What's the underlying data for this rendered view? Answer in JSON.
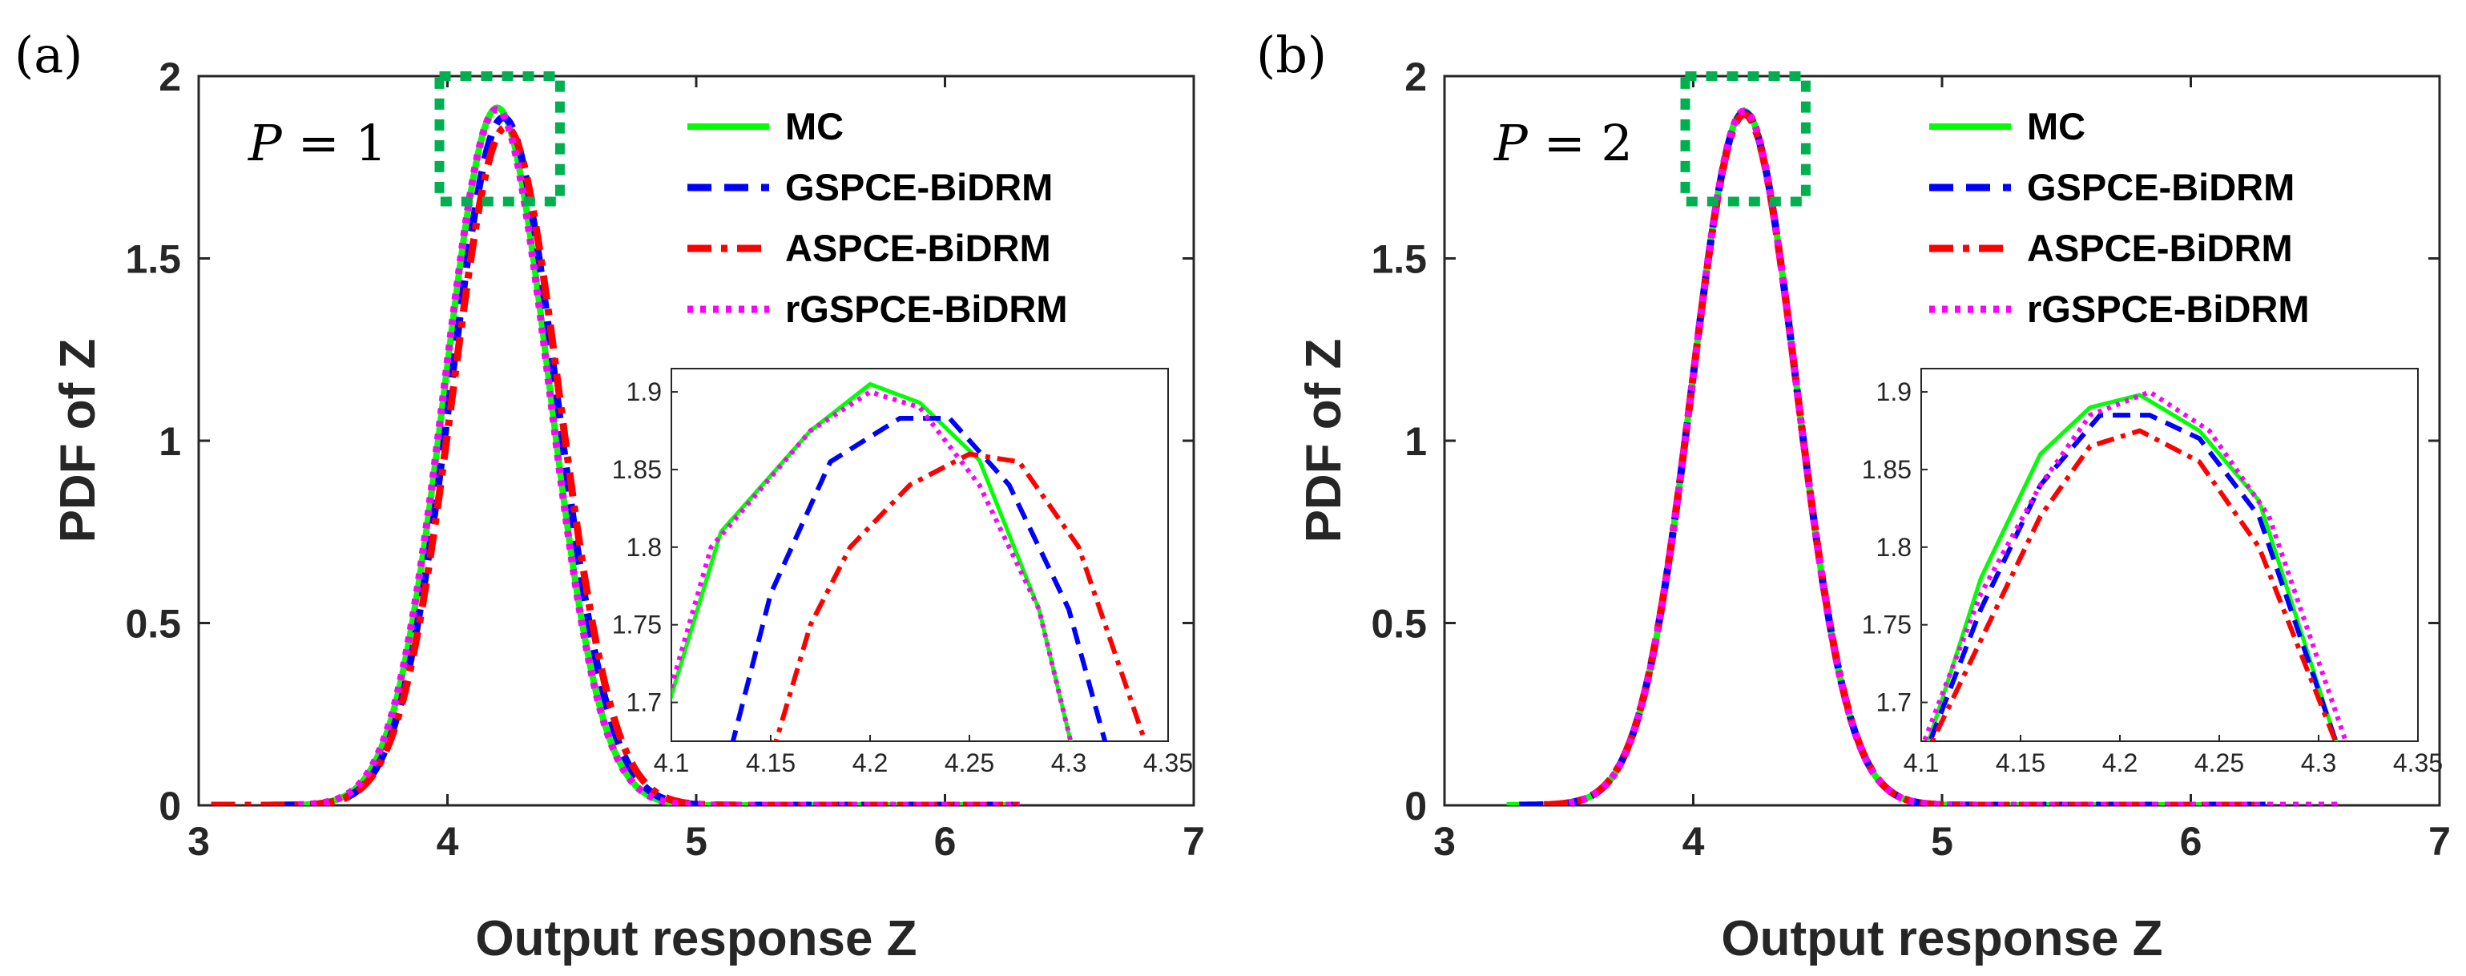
{
  "chart_data": [
    {
      "type": "line",
      "panel_label": "(a)",
      "annotation": {
        "symbol": "P",
        "equals": "= 1"
      },
      "xlabel": "Output response Z",
      "ylabel": "PDF of Z",
      "xlim": [
        3,
        7
      ],
      "ylim": [
        0,
        2
      ],
      "xticks": [
        "3",
        "4",
        "5",
        "6",
        "7"
      ],
      "yticks": [
        "0",
        "0.5",
        "1",
        "1.5",
        "2"
      ],
      "legend_position": "top-right",
      "zoom_box": {
        "x": [
          4.0,
          4.42
        ],
        "y": [
          1.7,
          2.0
        ]
      },
      "series": [
        {
          "name": "MC",
          "color": "#00ff00",
          "style": "solid",
          "mu": 4.2,
          "sigma": 0.2085,
          "x_range": [
            3.3,
            6.3
          ]
        },
        {
          "name": "GSPCE-BiDRM",
          "color": "#0000ff",
          "style": "dashed",
          "mu": 4.225,
          "sigma": 0.2115,
          "x_range": [
            3.3,
            6.3
          ]
        },
        {
          "name": "ASPCE-BiDRM",
          "color": "#ff0000",
          "style": "dashdot",
          "mu": 4.235,
          "sigma": 0.2145,
          "x_range": [
            3.05,
            6.3
          ]
        },
        {
          "name": "rGSPCE-BiDRM",
          "color": "#ff00ff",
          "style": "dotted",
          "mu": 4.198,
          "sigma": 0.209,
          "x_range": [
            3.4,
            6.3
          ]
        }
      ],
      "inset": {
        "xlim": [
          4.1,
          4.35
        ],
        "ylim": [
          1.675,
          1.915
        ],
        "xticks": [
          "4.1",
          "4.15",
          "4.2",
          "4.25",
          "4.3",
          "4.35"
        ],
        "yticks": [
          "1.7",
          "1.75",
          "1.8",
          "1.85",
          "1.9"
        ],
        "series": [
          {
            "name": "MC",
            "x": [
              4.08,
              4.125,
              4.17,
              4.2,
              4.225,
              4.255,
              4.285,
              4.315
            ],
            "y": [
              1.62,
              1.81,
              1.875,
              1.905,
              1.893,
              1.856,
              1.76,
              1.6
            ]
          },
          {
            "name": "GSPCE-BiDRM",
            "x": [
              4.12,
              4.15,
              4.18,
              4.215,
              4.24,
              4.27,
              4.3,
              4.33
            ],
            "y": [
              1.62,
              1.77,
              1.855,
              1.883,
              1.883,
              1.84,
              1.76,
              1.62
            ]
          },
          {
            "name": "ASPCE-BiDRM",
            "x": [
              4.14,
              4.17,
              4.19,
              4.22,
              4.25,
              4.275,
              4.305,
              4.345
            ],
            "y": [
              1.62,
              1.75,
              1.8,
              1.84,
              1.86,
              1.855,
              1.8,
              1.65
            ]
          },
          {
            "name": "rGSPCE-BiDRM",
            "x": [
              4.08,
              4.12,
              4.17,
              4.2,
              4.225,
              4.255,
              4.285,
              4.315
            ],
            "y": [
              1.62,
              1.8,
              1.875,
              1.9,
              1.89,
              1.84,
              1.76,
              1.6
            ]
          }
        ]
      }
    },
    {
      "type": "line",
      "panel_label": "(b)",
      "annotation": {
        "symbol": "P",
        "equals": "= 2"
      },
      "xlabel": "Output response Z",
      "ylabel": "PDF of Z",
      "xlim": [
        3,
        7
      ],
      "ylim": [
        0,
        2
      ],
      "xticks": [
        "3",
        "4",
        "5",
        "6",
        "7"
      ],
      "yticks": [
        "0",
        "0.5",
        "1",
        "1.5",
        "2"
      ],
      "legend_position": "top-right",
      "zoom_box": {
        "x": [
          4.0,
          4.42
        ],
        "y": [
          1.7,
          2.0
        ]
      },
      "series": [
        {
          "name": "MC",
          "color": "#00ff00",
          "style": "solid",
          "mu": 4.205,
          "sigma": 0.2095,
          "x_range": [
            3.25,
            6.3
          ]
        },
        {
          "name": "GSPCE-BiDRM",
          "color": "#0000ff",
          "style": "dashed",
          "mu": 4.205,
          "sigma": 0.21,
          "x_range": [
            3.3,
            6.3
          ]
        },
        {
          "name": "ASPCE-BiDRM",
          "color": "#ff0000",
          "style": "dashdot",
          "mu": 4.205,
          "sigma": 0.2105,
          "x_range": [
            3.4,
            6.3
          ]
        },
        {
          "name": "rGSPCE-BiDRM",
          "color": "#ff00ff",
          "style": "dotted",
          "mu": 4.205,
          "sigma": 0.2095,
          "x_range": [
            3.5,
            6.6
          ]
        }
      ],
      "inset": {
        "xlim": [
          4.1,
          4.35
        ],
        "ylim": [
          1.675,
          1.915
        ],
        "xticks": [
          "4.1",
          "4.15",
          "4.2",
          "4.25",
          "4.3",
          "4.35"
        ],
        "yticks": [
          "1.7",
          "1.75",
          "1.8",
          "1.85",
          "1.9"
        ],
        "series": [
          {
            "name": "MC",
            "x": [
              4.1,
              4.13,
              4.16,
              4.185,
              4.21,
              4.24,
              4.27,
              4.31
            ],
            "y": [
              1.66,
              1.78,
              1.86,
              1.89,
              1.898,
              1.875,
              1.83,
              1.67
            ]
          },
          {
            "name": "GSPCE-BiDRM",
            "x": [
              4.1,
              4.13,
              4.16,
              4.19,
              4.215,
              4.24,
              4.27,
              4.31
            ],
            "y": [
              1.66,
              1.76,
              1.84,
              1.885,
              1.885,
              1.87,
              1.82,
              1.67
            ]
          },
          {
            "name": "ASPCE-BiDRM",
            "x": [
              4.1,
              4.13,
              4.16,
              4.185,
              4.21,
              4.24,
              4.27,
              4.31
            ],
            "y": [
              1.66,
              1.74,
              1.82,
              1.865,
              1.875,
              1.855,
              1.8,
              1.67
            ]
          },
          {
            "name": "rGSPCE-BiDRM",
            "x": [
              4.1,
              4.13,
              4.16,
              4.185,
              4.215,
              4.245,
              4.275,
              4.315
            ],
            "y": [
              1.67,
              1.77,
              1.84,
              1.885,
              1.9,
              1.875,
              1.82,
              1.67
            ]
          }
        ]
      }
    }
  ]
}
